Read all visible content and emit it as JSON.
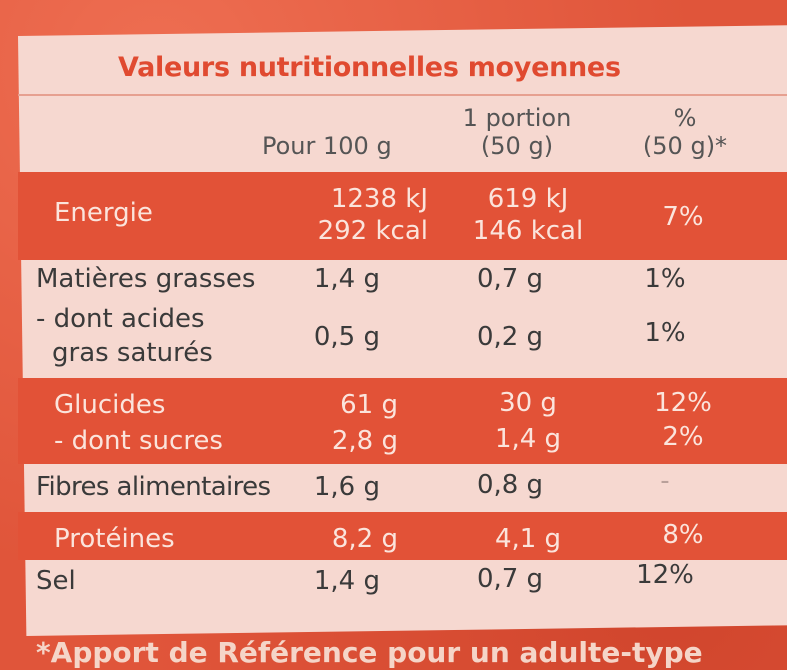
{
  "table": {
    "title": "Valeurs nutritionnelles moyennes",
    "headers": {
      "per100": "Pour 100 g",
      "portion": [
        "1 portion",
        "(50 g)"
      ],
      "percent": [
        "%",
        "(50 g)*"
      ]
    },
    "rows": {
      "energie": {
        "label": "Energie",
        "per100": [
          "1238 kJ",
          "292 kcal"
        ],
        "portion": [
          "619 kJ",
          "146 kcal"
        ],
        "percent": "7%"
      },
      "matieres": {
        "label": "Matières grasses",
        "per100": "1,4 g",
        "portion": "0,7 g",
        "percent": "1%"
      },
      "satures": {
        "label": [
          "- dont acides",
          "gras saturés"
        ],
        "per100": "0,5 g",
        "portion": "0,2 g",
        "percent": "1%"
      },
      "glucides": {
        "label": "Glucides",
        "per100": "61 g",
        "portion": "30 g",
        "percent": "12%"
      },
      "sucres": {
        "label": "- dont sucres",
        "per100": "2,8 g",
        "portion": "1,4 g",
        "percent": "2%"
      },
      "fibres": {
        "label": "Fibres alimentaires",
        "per100": "1,6 g",
        "portion": "0,8 g",
        "percent": "-"
      },
      "proteines": {
        "label": "Protéines",
        "per100": "8,2 g",
        "portion": "4,1 g",
        "percent": "8%"
      },
      "sel": {
        "label": "Sel",
        "per100": "1,4 g",
        "portion": "0,7 g",
        "percent": "12%"
      }
    },
    "footnote": "*Apport de Référence pour un adulte-type"
  }
}
